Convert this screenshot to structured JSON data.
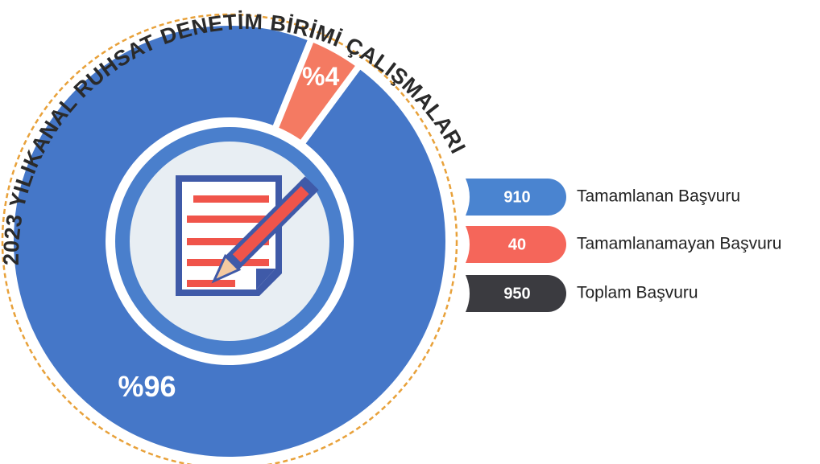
{
  "chart_data": {
    "type": "donut",
    "title": "2023 YILIKANAL RUHSAT DENETİM BİRİMİ ÇALIŞMALARI",
    "categories": [
      "Tamamlanan Başvuru",
      "Tamamlanamayan Başvuru"
    ],
    "values": [
      96,
      4
    ],
    "value_labels": [
      "%96",
      "%4"
    ],
    "colors": [
      "#4577c8",
      "#f47a62"
    ],
    "legend": [
      {
        "label": "Tamamlanan Başvuru",
        "count": 910,
        "color": "#4a84d0"
      },
      {
        "label": "Tamamlanamayan Başvuru",
        "count": 40,
        "color": "#f5665a"
      },
      {
        "label": "Toplam Başvuru",
        "count": 950,
        "color": "#3b3b40"
      }
    ]
  }
}
